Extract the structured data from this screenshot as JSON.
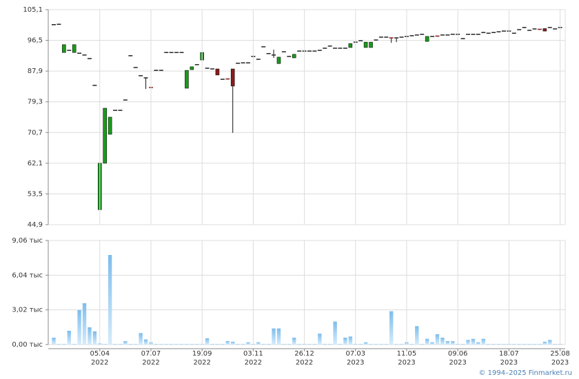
{
  "chart_data": [
    {
      "type": "candlestick",
      "open": [
        100.9,
        101.0,
        93.1,
        93.7,
        93.1,
        92.9,
        92.4,
        91.4,
        83.9,
        49.1,
        62.1,
        70.2,
        76.9,
        76.9,
        79.8,
        92.2,
        88.9,
        86.6,
        86.0,
        83.3,
        88.1,
        88.1,
        93.1,
        93.1,
        93.1,
        93.1,
        83.1,
        88.3,
        89.7,
        91.0,
        88.7,
        88.5,
        88.5,
        85.6,
        85.7,
        88.5,
        90.1,
        90.2,
        90.2,
        92.0,
        91.2,
        94.7,
        92.8,
        92.4,
        90.0,
        93.3,
        92.0,
        91.6,
        93.5,
        93.5,
        93.5,
        93.5,
        93.7,
        94.3,
        94.9,
        94.3,
        94.3,
        94.3,
        94.5,
        96.0,
        96.4,
        94.5,
        94.5,
        96.6,
        97.4,
        97.4,
        97.2,
        97.2,
        97.4,
        97.6,
        97.8,
        98.0,
        98.2,
        96.2,
        97.6,
        97.7,
        98.0,
        98.0,
        98.2,
        98.2,
        97.0,
        98.2,
        98.2,
        98.2,
        98.7,
        98.5,
        98.7,
        98.9,
        99.1,
        99.1,
        98.5,
        99.5,
        100.1,
        99.3,
        99.7,
        99.6,
        99.8,
        100.1,
        99.7,
        100.1
      ],
      "high": [
        100.9,
        101.0,
        95.3,
        93.7,
        95.3,
        92.9,
        92.4,
        91.4,
        83.9,
        62.1,
        77.5,
        75.0,
        76.9,
        76.9,
        79.8,
        92.2,
        88.9,
        86.6,
        86.0,
        83.3,
        88.1,
        88.1,
        93.1,
        93.1,
        93.1,
        93.1,
        88.1,
        89.1,
        89.7,
        93.1,
        88.7,
        88.5,
        88.5,
        85.6,
        85.7,
        88.5,
        90.1,
        90.2,
        90.2,
        92.0,
        91.2,
        94.7,
        92.8,
        93.9,
        91.8,
        93.3,
        92.0,
        92.6,
        93.5,
        93.5,
        93.5,
        93.5,
        93.7,
        94.3,
        94.9,
        94.3,
        94.3,
        94.3,
        95.6,
        96.0,
        96.4,
        96.0,
        96.0,
        96.6,
        97.4,
        97.4,
        97.2,
        97.2,
        97.4,
        97.6,
        97.8,
        98.0,
        98.2,
        97.6,
        97.6,
        97.7,
        98.0,
        98.0,
        98.2,
        98.2,
        97.0,
        98.2,
        98.2,
        98.2,
        98.7,
        98.5,
        98.7,
        98.9,
        99.1,
        99.1,
        98.5,
        99.5,
        100.1,
        99.3,
        99.7,
        99.6,
        99.8,
        100.1,
        99.7,
        100.1
      ],
      "low": [
        100.9,
        101.0,
        93.1,
        93.7,
        93.1,
        92.9,
        92.4,
        91.4,
        83.9,
        49.1,
        62.1,
        70.2,
        76.9,
        76.9,
        79.8,
        92.2,
        88.9,
        86.6,
        82.9,
        83.1,
        88.1,
        88.1,
        93.1,
        93.1,
        93.1,
        93.1,
        83.1,
        88.3,
        89.7,
        91.0,
        88.7,
        88.5,
        86.8,
        85.6,
        85.5,
        70.6,
        90.1,
        90.2,
        90.2,
        92.0,
        91.2,
        94.7,
        92.8,
        91.6,
        90.0,
        93.3,
        92.0,
        91.6,
        93.5,
        93.5,
        93.5,
        93.5,
        93.7,
        94.3,
        94.9,
        94.3,
        94.3,
        94.3,
        94.5,
        96.0,
        96.4,
        94.5,
        94.5,
        96.6,
        97.4,
        97.4,
        95.8,
        96.0,
        97.4,
        97.6,
        97.8,
        98.0,
        98.2,
        96.2,
        97.6,
        97.5,
        98.0,
        98.0,
        98.2,
        98.2,
        97.0,
        98.2,
        98.2,
        98.2,
        98.7,
        98.5,
        98.7,
        98.9,
        99.1,
        99.1,
        98.5,
        99.5,
        100.1,
        99.3,
        99.7,
        99.4,
        99.1,
        100.1,
        99.7,
        100.1
      ],
      "close": [
        100.9,
        101.0,
        95.3,
        93.7,
        95.3,
        92.9,
        92.4,
        91.4,
        83.9,
        62.1,
        77.5,
        75.0,
        76.9,
        76.9,
        79.8,
        92.2,
        88.9,
        86.6,
        86.0,
        83.1,
        88.1,
        88.1,
        93.1,
        93.1,
        93.1,
        93.1,
        88.1,
        89.1,
        89.7,
        93.1,
        88.7,
        88.5,
        86.8,
        85.6,
        85.5,
        83.7,
        90.1,
        90.2,
        90.2,
        92.0,
        91.2,
        94.7,
        92.8,
        92.4,
        91.8,
        93.3,
        92.0,
        92.6,
        93.5,
        93.5,
        93.5,
        93.5,
        93.7,
        94.3,
        94.9,
        94.3,
        94.3,
        94.3,
        95.6,
        96.0,
        96.4,
        96.0,
        96.0,
        96.6,
        97.4,
        97.4,
        97.0,
        97.2,
        97.4,
        97.6,
        97.8,
        98.0,
        98.2,
        97.6,
        97.6,
        97.5,
        98.0,
        98.0,
        98.2,
        98.2,
        97.0,
        98.2,
        98.2,
        98.2,
        98.7,
        98.5,
        98.7,
        98.9,
        99.1,
        99.1,
        98.5,
        99.5,
        100.1,
        99.3,
        99.7,
        99.4,
        99.1,
        100.1,
        99.7,
        100.1
      ],
      "up_color": "#1a9a1a",
      "down_color": "#8b1c1c",
      "flat_color": "#222222",
      "ylim": [
        44.9,
        105.1
      ],
      "yticks": [
        {
          "value": 44.9,
          "label": "44,9"
        },
        {
          "value": 53.5,
          "label": "53,5"
        },
        {
          "value": 62.1,
          "label": "62,1"
        },
        {
          "value": 70.7,
          "label": "70,7"
        },
        {
          "value": 79.3,
          "label": "79,3"
        },
        {
          "value": 87.9,
          "label": "87,9"
        },
        {
          "value": 96.5,
          "label": "96,5"
        },
        {
          "value": 105.1,
          "label": "105,1"
        }
      ],
      "grid": true
    },
    {
      "type": "bar",
      "categories": [
        null,
        null,
        null,
        null,
        null,
        null,
        null,
        null,
        null,
        "05.04",
        null,
        null,
        null,
        null,
        null,
        null,
        null,
        null,
        null,
        "07.07",
        null,
        null,
        null,
        null,
        null,
        null,
        null,
        null,
        null,
        "19.09",
        null,
        null,
        null,
        null,
        null,
        null,
        null,
        null,
        null,
        "03.11",
        null,
        null,
        null,
        null,
        null,
        null,
        null,
        null,
        null,
        "26.12",
        null,
        null,
        null,
        null,
        null,
        null,
        null,
        null,
        null,
        "07.03",
        null,
        null,
        null,
        null,
        null,
        null,
        null,
        null,
        null,
        "11.05",
        null,
        null,
        null,
        null,
        null,
        null,
        null,
        null,
        null,
        "09.06",
        null,
        null,
        null,
        null,
        null,
        null,
        null,
        null,
        null,
        "18.07",
        null,
        null,
        null,
        null,
        null,
        null,
        null,
        null,
        null,
        "25.08"
      ],
      "years": [
        null,
        null,
        null,
        null,
        null,
        null,
        null,
        null,
        null,
        "2022",
        null,
        null,
        null,
        null,
        null,
        null,
        null,
        null,
        null,
        "2022",
        null,
        null,
        null,
        null,
        null,
        null,
        null,
        null,
        null,
        "2022",
        null,
        null,
        null,
        null,
        null,
        null,
        null,
        null,
        null,
        "2022",
        null,
        null,
        null,
        null,
        null,
        null,
        null,
        null,
        null,
        "2022",
        null,
        null,
        null,
        null,
        null,
        null,
        null,
        null,
        null,
        "2023",
        null,
        null,
        null,
        null,
        null,
        null,
        null,
        null,
        null,
        "2023",
        null,
        null,
        null,
        null,
        null,
        null,
        null,
        null,
        null,
        "2023",
        null,
        null,
        null,
        null,
        null,
        null,
        null,
        null,
        null,
        "2023",
        null,
        null,
        null,
        null,
        null,
        null,
        null,
        null,
        null,
        "2023"
      ],
      "values": [
        0.6,
        0.05,
        0.05,
        1.2,
        0.05,
        3.0,
        3.6,
        1.5,
        1.15,
        0.1,
        0.05,
        7.8,
        0.05,
        0.05,
        0.3,
        0.05,
        0.05,
        1.0,
        0.45,
        0.2,
        0.05,
        0.05,
        0.05,
        0.05,
        0.05,
        0.05,
        0.05,
        0.05,
        0.05,
        0.05,
        0.55,
        0.05,
        0.05,
        0.05,
        0.3,
        0.25,
        0.05,
        0.05,
        0.2,
        0.05,
        0.2,
        0.05,
        0.05,
        1.4,
        1.4,
        0.05,
        0.05,
        0.6,
        0.05,
        0.05,
        0.05,
        0.05,
        0.95,
        0.05,
        0.05,
        2.0,
        0.05,
        0.6,
        0.7,
        0.05,
        0.05,
        0.2,
        0.05,
        0.05,
        0.05,
        0.05,
        2.9,
        0.05,
        0.05,
        0.2,
        0.05,
        1.6,
        0.05,
        0.5,
        0.2,
        0.9,
        0.6,
        0.3,
        0.3,
        0.05,
        0.05,
        0.4,
        0.5,
        0.2,
        0.5,
        0.05,
        0.05,
        0.05,
        0.05,
        0.05,
        0.05,
        0.05,
        0.05,
        0.05,
        0.05,
        0.05,
        0.25,
        0.4,
        0.05,
        0.05
      ],
      "color": "#8fc8ef",
      "ylim": [
        0,
        9.06
      ],
      "yticks": [
        {
          "value": 0,
          "label": "0,00 тыс"
        },
        {
          "value": 3.02,
          "label": "3,02 тыс"
        },
        {
          "value": 6.04,
          "label": "6,04 тыс"
        },
        {
          "value": 9.06,
          "label": "9,06 тыс"
        }
      ],
      "grid": true
    }
  ],
  "copyright": "© 1994–2025 Finmarket.ru"
}
